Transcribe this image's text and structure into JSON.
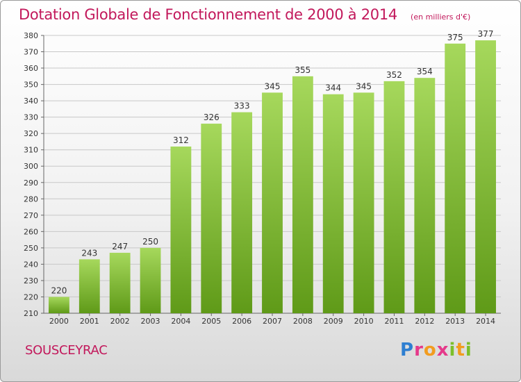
{
  "title": "Dotation Globale de Fonctionnement de 2000 à 2014",
  "subtitle": "(en milliers d'€)",
  "commune": "SOUSCEYRAC",
  "logo_text": "Proxiti",
  "colors": {
    "title": "#c2185b",
    "bar_light": "#a6d85c",
    "bar_dark": "#5f9a18",
    "grid": "#c8c8c8"
  },
  "chart_data": {
    "type": "bar",
    "title": "Dotation Globale de Fonctionnement de 2000 à 2014",
    "subtitle": "(en milliers d'€)",
    "categories": [
      "2000",
      "2001",
      "2002",
      "2003",
      "2004",
      "2005",
      "2006",
      "2007",
      "2008",
      "2009",
      "2010",
      "2011",
      "2012",
      "2013",
      "2014"
    ],
    "values": [
      220,
      243,
      247,
      250,
      312,
      326,
      333,
      345,
      355,
      344,
      345,
      352,
      354,
      375,
      377
    ],
    "ylim": [
      210,
      380
    ],
    "ytick_step": 10,
    "xlabel": "",
    "ylabel": "",
    "grid": true,
    "data_labels": true
  }
}
